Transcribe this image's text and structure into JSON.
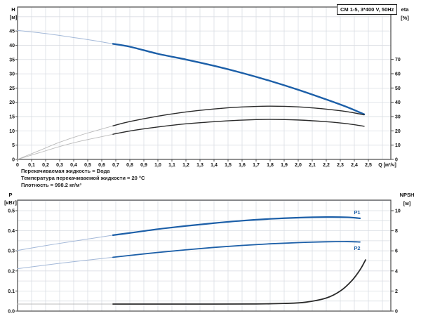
{
  "title_box": "CM 1-5, 3*400 V, 50Hz",
  "info_lines": [
    "Перекачиваемая жидкость = Вода",
    "Температура перекачиваемой жидкости = 20 °C",
    "Плотность = 998.2 кг/м³"
  ],
  "colors": {
    "curve_blue": "#1c5fa8",
    "curve_blue_light": "#a3b8d8",
    "curve_black": "#2b2b2b",
    "curve_gray_light": "#bbbbbb",
    "grid": "#d9dde3",
    "frame": "#4a4a4a",
    "text": "#111111"
  },
  "chart_data": [
    {
      "type": "line",
      "name": "head-efficiency-chart",
      "x_axis": {
        "min": 0,
        "max": 2.66,
        "grid_step": 0.1,
        "title": "Q [м³/ч]",
        "ticks": [
          {
            "v": 0,
            "t": "0"
          },
          {
            "v": 0.1,
            "t": "0,1"
          },
          {
            "v": 0.2,
            "t": "0,2"
          },
          {
            "v": 0.3,
            "t": "0,3"
          },
          {
            "v": 0.4,
            "t": "0,4"
          },
          {
            "v": 0.5,
            "t": "0,5"
          },
          {
            "v": 0.6,
            "t": "0,6"
          },
          {
            "v": 0.7,
            "t": "0,7"
          },
          {
            "v": 0.8,
            "t": "0,8"
          },
          {
            "v": 0.9,
            "t": "0,9"
          },
          {
            "v": 1.0,
            "t": "1,0"
          },
          {
            "v": 1.1,
            "t": "1,1"
          },
          {
            "v": 1.2,
            "t": "1,2"
          },
          {
            "v": 1.3,
            "t": "1,3"
          },
          {
            "v": 1.4,
            "t": "1,4"
          },
          {
            "v": 1.5,
            "t": "1,5"
          },
          {
            "v": 1.6,
            "t": "1,6"
          },
          {
            "v": 1.7,
            "t": "1,7"
          },
          {
            "v": 1.8,
            "t": "1,8"
          },
          {
            "v": 1.9,
            "t": "1,9"
          },
          {
            "v": 2.0,
            "t": "2,0"
          },
          {
            "v": 2.1,
            "t": "2,1"
          },
          {
            "v": 2.2,
            "t": "2,2"
          },
          {
            "v": 2.3,
            "t": "2,3"
          },
          {
            "v": 2.4,
            "t": "2,4"
          },
          {
            "v": 2.5,
            "t": "2,5"
          }
        ]
      },
      "y_left": {
        "min": 0,
        "max": 53.4,
        "grid_step": 5,
        "label": [
          "H",
          "[м]"
        ],
        "ticks": [
          {
            "v": 0,
            "t": "0"
          },
          {
            "v": 5,
            "t": "5"
          },
          {
            "v": 10,
            "t": "10"
          },
          {
            "v": 15,
            "t": "15"
          },
          {
            "v": 20,
            "t": "20"
          },
          {
            "v": 25,
            "t": "25"
          },
          {
            "v": 30,
            "t": "30"
          },
          {
            "v": 35,
            "t": "35"
          },
          {
            "v": 40,
            "t": "40"
          },
          {
            "v": 45,
            "t": "45"
          }
        ]
      },
      "y_right": {
        "min": 0,
        "max": 106.7,
        "label": [
          "eta",
          "[%]"
        ],
        "ticks": [
          {
            "v": 0,
            "t": "0"
          },
          {
            "v": 10,
            "t": "10"
          },
          {
            "v": 20,
            "t": "20"
          },
          {
            "v": 30,
            "t": "30"
          },
          {
            "v": 40,
            "t": "40"
          },
          {
            "v": 50,
            "t": "50"
          },
          {
            "v": 60,
            "t": "60"
          },
          {
            "v": 70,
            "t": "70"
          }
        ]
      },
      "series": [
        {
          "name": "H",
          "axis": "left",
          "color": "#1c5fa8",
          "light_color": "#a3b8d8",
          "width": 2.4,
          "light_width": 1,
          "thick_from": 0.68,
          "points": [
            [
              0,
              45.2
            ],
            [
              0.2,
              44.1
            ],
            [
              0.4,
              42.7
            ],
            [
              0.55,
              41.6
            ],
            [
              0.68,
              40.5
            ],
            [
              0.8,
              39.5
            ],
            [
              1.0,
              37.0
            ],
            [
              1.2,
              35.0
            ],
            [
              1.4,
              32.8
            ],
            [
              1.6,
              30.3
            ],
            [
              1.8,
              27.5
            ],
            [
              2.0,
              24.4
            ],
            [
              2.2,
              21.0
            ],
            [
              2.35,
              18.3
            ],
            [
              2.47,
              15.8
            ]
          ]
        },
        {
          "name": "eta-pump",
          "axis": "right",
          "color": "#2b2b2b",
          "light_color": "#bbbbbb",
          "width": 1.4,
          "light_width": 0.9,
          "thick_from": 0.68,
          "points": [
            [
              0,
              0
            ],
            [
              0.15,
              6
            ],
            [
              0.3,
              12
            ],
            [
              0.45,
              17
            ],
            [
              0.68,
              23.5
            ],
            [
              0.8,
              26.5
            ],
            [
              1.0,
              30.3
            ],
            [
              1.2,
              33.2
            ],
            [
              1.4,
              35.3
            ],
            [
              1.6,
              36.7
            ],
            [
              1.8,
              37.3
            ],
            [
              2.0,
              36.8
            ],
            [
              2.2,
              35.2
            ],
            [
              2.35,
              33.4
            ],
            [
              2.47,
              31.2
            ]
          ]
        },
        {
          "name": "eta-pump-motor",
          "axis": "right",
          "color": "#2b2b2b",
          "light_color": "#bbbbbb",
          "width": 1.4,
          "light_width": 0.9,
          "thick_from": 0.68,
          "points": [
            [
              0,
              0
            ],
            [
              0.15,
              4.5
            ],
            [
              0.3,
              9
            ],
            [
              0.45,
              12.8
            ],
            [
              0.68,
              17.6
            ],
            [
              0.8,
              19.9
            ],
            [
              1.0,
              22.7
            ],
            [
              1.2,
              24.9
            ],
            [
              1.4,
              26.4
            ],
            [
              1.6,
              27.5
            ],
            [
              1.8,
              28.0
            ],
            [
              2.0,
              27.6
            ],
            [
              2.2,
              26.4
            ],
            [
              2.35,
              25.0
            ],
            [
              2.47,
              23.2
            ]
          ]
        }
      ]
    },
    {
      "type": "line",
      "name": "power-npsh-chart",
      "x_axis": {
        "min": 0,
        "max": 2.66,
        "grid_step": 0.1,
        "title": "",
        "ticks": []
      },
      "y_left": {
        "min": 0,
        "max": 0.5524,
        "grid_step": 0.05,
        "label": [
          "P",
          "[кВт]"
        ],
        "ticks": [
          {
            "v": 0,
            "t": "0.0"
          },
          {
            "v": 0.1,
            "t": "0.1"
          },
          {
            "v": 0.2,
            "t": "0.2"
          },
          {
            "v": 0.3,
            "t": "0.3"
          },
          {
            "v": 0.4,
            "t": "0.4"
          },
          {
            "v": 0.5,
            "t": "0.5"
          }
        ]
      },
      "y_right": {
        "min": 0,
        "max": 11.05,
        "label": [
          "NPSH",
          "[м]"
        ],
        "ticks": [
          {
            "v": 0,
            "t": "0"
          },
          {
            "v": 2,
            "t": "2"
          },
          {
            "v": 4,
            "t": "4"
          },
          {
            "v": 6,
            "t": "6"
          },
          {
            "v": 8,
            "t": "8"
          },
          {
            "v": 10,
            "t": "10"
          }
        ]
      },
      "series": [
        {
          "name": "P1",
          "axis": "left",
          "color": "#1c5fa8",
          "light_color": "#a3b8d8",
          "width": 2.2,
          "light_width": 1,
          "thick_from": 0.68,
          "label": {
            "text": "P1",
            "q": 2.42,
            "v": 0.483
          },
          "points": [
            [
              0,
              0.302
            ],
            [
              0.2,
              0.326
            ],
            [
              0.4,
              0.348
            ],
            [
              0.68,
              0.378
            ],
            [
              0.8,
              0.389
            ],
            [
              1.0,
              0.408
            ],
            [
              1.2,
              0.424
            ],
            [
              1.4,
              0.438
            ],
            [
              1.6,
              0.45
            ],
            [
              1.8,
              0.459
            ],
            [
              2.0,
              0.465
            ],
            [
              2.2,
              0.468
            ],
            [
              2.35,
              0.467
            ],
            [
              2.44,
              0.462
            ]
          ]
        },
        {
          "name": "P2",
          "axis": "left",
          "color": "#1c5fa8",
          "light_color": "#a3b8d8",
          "width": 1.8,
          "light_width": 1,
          "thick_from": 0.68,
          "label": {
            "text": "P2",
            "q": 2.42,
            "v": 0.305
          },
          "points": [
            [
              0,
              0.211
            ],
            [
              0.2,
              0.229
            ],
            [
              0.4,
              0.246
            ],
            [
              0.68,
              0.268
            ],
            [
              0.8,
              0.277
            ],
            [
              1.0,
              0.292
            ],
            [
              1.2,
              0.305
            ],
            [
              1.4,
              0.317
            ],
            [
              1.6,
              0.327
            ],
            [
              1.8,
              0.335
            ],
            [
              2.0,
              0.341
            ],
            [
              2.2,
              0.345
            ],
            [
              2.35,
              0.346
            ],
            [
              2.44,
              0.344
            ]
          ]
        },
        {
          "name": "NPSH",
          "axis": "right",
          "color": "#2b2b2b",
          "light_color": "#bbbbbb",
          "width": 1.8,
          "light_width": 1,
          "thick_from": 0.68,
          "points": [
            [
              0,
              0.7
            ],
            [
              0.4,
              0.7
            ],
            [
              0.68,
              0.7
            ],
            [
              1.0,
              0.7
            ],
            [
              1.4,
              0.7
            ],
            [
              1.7,
              0.71
            ],
            [
              1.9,
              0.76
            ],
            [
              2.05,
              0.88
            ],
            [
              2.2,
              1.3
            ],
            [
              2.3,
              2.0
            ],
            [
              2.38,
              3.0
            ],
            [
              2.44,
              4.1
            ],
            [
              2.48,
              5.1
            ]
          ]
        }
      ]
    }
  ]
}
